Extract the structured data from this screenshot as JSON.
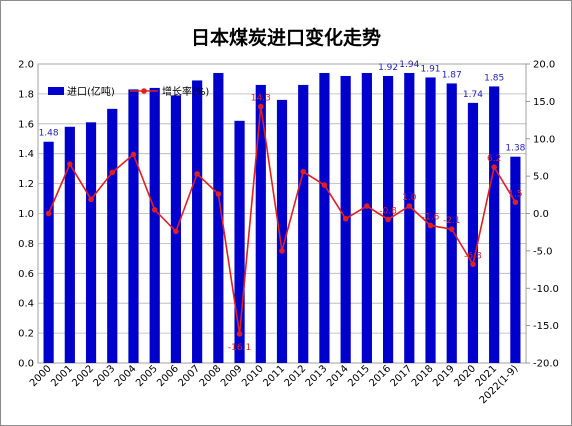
{
  "chart_data": {
    "type": "bar+line",
    "title": "日本煤炭进口变化走势",
    "categories": [
      "2000",
      "2001",
      "2002",
      "2003",
      "2004",
      "2005",
      "2006",
      "2007",
      "2008",
      "2009",
      "2010",
      "2011",
      "2012",
      "2013",
      "2014",
      "2015",
      "2016",
      "2017",
      "2018",
      "2019",
      "2020",
      "2021",
      "2022(1-9)"
    ],
    "series": [
      {
        "name": "进口(亿吨)",
        "type": "bar",
        "axis": "left",
        "color": "#0000cc",
        "values": [
          1.48,
          1.58,
          1.61,
          1.7,
          1.83,
          1.84,
          1.79,
          1.89,
          1.94,
          1.62,
          1.86,
          1.76,
          1.86,
          1.94,
          1.92,
          1.94,
          1.92,
          1.94,
          1.91,
          1.87,
          1.74,
          1.85,
          1.38
        ]
      },
      {
        "name": "增长率(%)",
        "type": "line",
        "axis": "right",
        "color": "#e02020",
        "values": [
          0.0,
          6.6,
          1.9,
          5.5,
          7.9,
          0.5,
          -2.4,
          5.3,
          2.6,
          -16.1,
          14.3,
          -5.0,
          5.6,
          3.8,
          -0.7,
          1.0,
          -0.8,
          1.0,
          -1.6,
          -2.1,
          -6.8,
          6.2,
          1.5
        ]
      }
    ],
    "bar_labels": [
      {
        "index": 0,
        "text": "1.48"
      },
      {
        "index": 16,
        "text": "1.92"
      },
      {
        "index": 17,
        "text": "1.94"
      },
      {
        "index": 18,
        "text": "1.91"
      },
      {
        "index": 19,
        "text": "1.87"
      },
      {
        "index": 20,
        "text": "1.74"
      },
      {
        "index": 21,
        "text": "1.85"
      },
      {
        "index": 22,
        "text": "1.38"
      }
    ],
    "line_labels": [
      {
        "index": 9,
        "text": "-16.1"
      },
      {
        "index": 10,
        "text": "14.3"
      },
      {
        "index": 16,
        "text": "-0.8"
      },
      {
        "index": 17,
        "text": "1.0"
      },
      {
        "index": 18,
        "text": "-1.6"
      },
      {
        "index": 19,
        "text": "-2.1"
      },
      {
        "index": 20,
        "text": "-6.8"
      },
      {
        "index": 21,
        "text": "6.2"
      },
      {
        "index": 22,
        "text": "1.5"
      }
    ],
    "ylim_left": [
      0,
      2.0
    ],
    "yticks_left": [
      "0.0",
      "0.2",
      "0.4",
      "0.6",
      "0.8",
      "1.0",
      "1.2",
      "1.4",
      "1.6",
      "1.8",
      "2.0"
    ],
    "ylim_right": [
      -20,
      20
    ],
    "yticks_right": [
      "-20.0",
      "-15.0",
      "-10.0",
      "-5.0",
      "0.0",
      "5.0",
      "10.0",
      "15.0",
      "20.0"
    ],
    "grid": true,
    "legend_position": "top-left"
  }
}
